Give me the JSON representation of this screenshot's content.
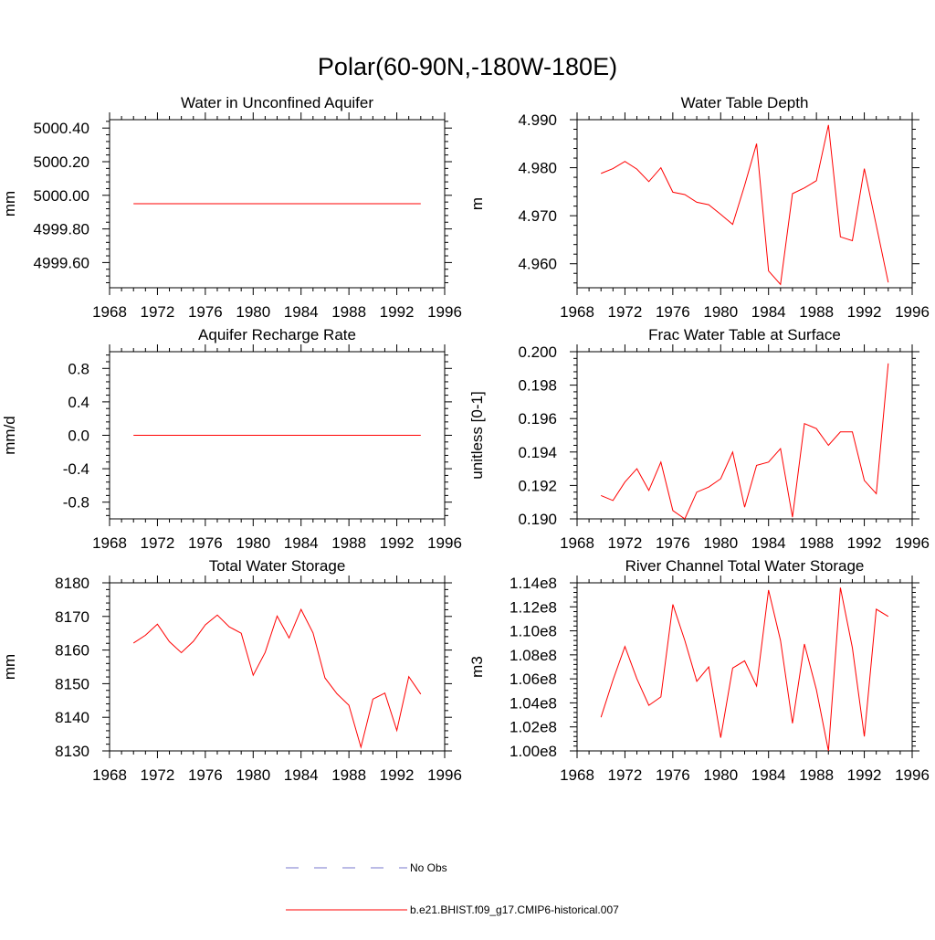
{
  "title": "Polar(60-90N,-180W-180E)",
  "legend": {
    "items": [
      {
        "label": "No Obs",
        "color": "#7777cc",
        "style": "dashed"
      },
      {
        "label": "b.e21.BHIST.f09_g17.CMIP6-historical.007",
        "color": "#ff0000",
        "style": "solid"
      }
    ]
  },
  "chart_data": [
    {
      "type": "line",
      "title": "Water in Unconfined Aquifer",
      "ylabel": "mm",
      "xlim": [
        1968,
        1996
      ],
      "ylim": [
        4999.45,
        5000.45
      ],
      "xticks": [
        1968,
        1972,
        1976,
        1980,
        1984,
        1988,
        1992,
        1996
      ],
      "yticks": [
        4999.6,
        4999.8,
        5000.0,
        5000.2,
        5000.4
      ],
      "ytick_labels": [
        "4999.60",
        "4999.80",
        "5000.00",
        "5000.20",
        "5000.40"
      ],
      "series": [
        {
          "color": "#ff0000",
          "x": [
            1970,
            1971,
            1972,
            1973,
            1974,
            1975,
            1976,
            1977,
            1978,
            1979,
            1980,
            1981,
            1982,
            1983,
            1984,
            1985,
            1986,
            1987,
            1988,
            1989,
            1990,
            1991,
            1992,
            1993,
            1994
          ],
          "y": [
            4999.95,
            4999.95,
            4999.95,
            4999.95,
            4999.95,
            4999.95,
            4999.95,
            4999.95,
            4999.95,
            4999.95,
            4999.95,
            4999.95,
            4999.95,
            4999.95,
            4999.95,
            4999.95,
            4999.95,
            4999.95,
            4999.95,
            4999.95,
            4999.95,
            4999.95,
            4999.95,
            4999.95,
            4999.95
          ]
        }
      ]
    },
    {
      "type": "line",
      "title": "Water Table Depth",
      "ylabel": "m",
      "xlim": [
        1968,
        1996
      ],
      "ylim": [
        4.955,
        4.99
      ],
      "xticks": [
        1968,
        1972,
        1976,
        1980,
        1984,
        1988,
        1992,
        1996
      ],
      "yticks": [
        4.96,
        4.97,
        4.98,
        4.99
      ],
      "ytick_labels": [
        "4.960",
        "4.970",
        "4.980",
        "4.990"
      ],
      "series": [
        {
          "color": "#ff0000",
          "x": [
            1970,
            1971,
            1972,
            1973,
            1974,
            1975,
            1976,
            1977,
            1978,
            1979,
            1980,
            1981,
            1982,
            1983,
            1984,
            1985,
            1986,
            1987,
            1988,
            1989,
            1990,
            1991,
            1992,
            1993,
            1994
          ],
          "y": [
            4.9788,
            4.9798,
            4.9813,
            4.9797,
            4.9771,
            4.98,
            4.9749,
            4.9744,
            4.9728,
            4.9723,
            4.9703,
            4.9682,
            4.9763,
            4.985,
            4.9585,
            4.9557,
            4.9746,
            4.9758,
            4.9773,
            4.9889,
            4.9656,
            4.9648,
            4.9798,
            4.968,
            4.9561
          ]
        }
      ]
    },
    {
      "type": "line",
      "title": "Aquifer Recharge Rate",
      "ylabel": "mm/d",
      "xlim": [
        1968,
        1996
      ],
      "ylim": [
        -1.0,
        1.0
      ],
      "xticks": [
        1968,
        1972,
        1976,
        1980,
        1984,
        1988,
        1992,
        1996
      ],
      "yticks": [
        -0.8,
        -0.4,
        0.0,
        0.4,
        0.8
      ],
      "ytick_labels": [
        "-0.8",
        "-0.4",
        "0.0",
        "0.4",
        "0.8"
      ],
      "series": [
        {
          "color": "#ff0000",
          "x": [
            1970,
            1971,
            1972,
            1973,
            1974,
            1975,
            1976,
            1977,
            1978,
            1979,
            1980,
            1981,
            1982,
            1983,
            1984,
            1985,
            1986,
            1987,
            1988,
            1989,
            1990,
            1991,
            1992,
            1993,
            1994
          ],
          "y": [
            0,
            0,
            0,
            0,
            0,
            0,
            0,
            0,
            0,
            0,
            0,
            0,
            0,
            0,
            0,
            0,
            0,
            0,
            0,
            0,
            0,
            0,
            0,
            0,
            0
          ]
        }
      ]
    },
    {
      "type": "line",
      "title": "Frac Water Table at Surface",
      "ylabel": "unitless [0-1]",
      "xlim": [
        1968,
        1996
      ],
      "ylim": [
        0.19,
        0.2
      ],
      "xticks": [
        1968,
        1972,
        1976,
        1980,
        1984,
        1988,
        1992,
        1996
      ],
      "yticks": [
        0.19,
        0.192,
        0.194,
        0.196,
        0.198,
        0.2
      ],
      "ytick_labels": [
        "0.190",
        "0.192",
        "0.194",
        "0.196",
        "0.198",
        "0.200"
      ],
      "series": [
        {
          "color": "#ff0000",
          "x": [
            1970,
            1971,
            1972,
            1973,
            1974,
            1975,
            1976,
            1977,
            1978,
            1979,
            1980,
            1981,
            1982,
            1983,
            1984,
            1985,
            1986,
            1987,
            1988,
            1989,
            1990,
            1991,
            1992,
            1993,
            1994
          ],
          "y": [
            0.1914,
            0.1911,
            0.1922,
            0.193,
            0.1917,
            0.1934,
            0.1905,
            0.19,
            0.1916,
            0.1919,
            0.1924,
            0.194,
            0.1907,
            0.1932,
            0.1934,
            0.1942,
            0.1901,
            0.1957,
            0.1954,
            0.1944,
            0.1952,
            0.1952,
            0.1923,
            0.1915,
            0.1993
          ]
        }
      ]
    },
    {
      "type": "line",
      "title": "Total Water Storage",
      "ylabel": "mm",
      "xlim": [
        1968,
        1996
      ],
      "ylim": [
        8130,
        8180
      ],
      "xticks": [
        1968,
        1972,
        1976,
        1980,
        1984,
        1988,
        1992,
        1996
      ],
      "yticks": [
        8130,
        8140,
        8150,
        8160,
        8170,
        8180
      ],
      "ytick_labels": [
        "8130",
        "8140",
        "8150",
        "8160",
        "8170",
        "8180"
      ],
      "series": [
        {
          "color": "#ff0000",
          "x": [
            1970,
            1971,
            1972,
            1973,
            1974,
            1975,
            1976,
            1977,
            1978,
            1979,
            1980,
            1981,
            1982,
            1983,
            1984,
            1985,
            1986,
            1987,
            1988,
            1989,
            1990,
            1991,
            1992,
            1993,
            1994
          ],
          "y": [
            8162.1,
            8164.4,
            8167.7,
            8162.5,
            8159.2,
            8162.6,
            8167.5,
            8170.4,
            8166.9,
            8165.0,
            8152.5,
            8159.3,
            8170.1,
            8163.6,
            8172.1,
            8165.1,
            8151.7,
            8147.0,
            8143.6,
            8131.1,
            8145.4,
            8147.2,
            8136.1,
            8152.1,
            8146.9
          ]
        }
      ]
    },
    {
      "type": "line",
      "title": "River Channel Total Water Storage",
      "ylabel": "m3",
      "xlim": [
        1968,
        1996
      ],
      "ylim": [
        100000000,
        114000000
      ],
      "xticks": [
        1968,
        1972,
        1976,
        1980,
        1984,
        1988,
        1992,
        1996
      ],
      "yticks": [
        100000000,
        102000000,
        104000000,
        106000000,
        108000000,
        110000000,
        112000000,
        114000000
      ],
      "ytick_labels": [
        "1.00e8",
        "1.02e8",
        "1.04e8",
        "1.06e8",
        "1.08e8",
        "1.10e8",
        "1.12e8",
        "1.14e8"
      ],
      "series": [
        {
          "color": "#ff0000",
          "x": [
            1970,
            1971,
            1972,
            1973,
            1974,
            1975,
            1976,
            1977,
            1978,
            1979,
            1980,
            1981,
            1982,
            1983,
            1984,
            1985,
            1986,
            1987,
            1988,
            1989,
            1990,
            1991,
            1992,
            1993,
            1994
          ],
          "y": [
            102800000,
            105900000,
            108700000,
            106000000,
            103800000,
            104500000,
            112200000,
            109200000,
            105800000,
            107000000,
            101100000,
            106900000,
            107500000,
            105400000,
            113400000,
            109200000,
            102300000,
            108900000,
            105100000,
            100000000,
            113600000,
            108600000,
            101200000,
            111800000,
            111200000
          ]
        }
      ]
    }
  ]
}
